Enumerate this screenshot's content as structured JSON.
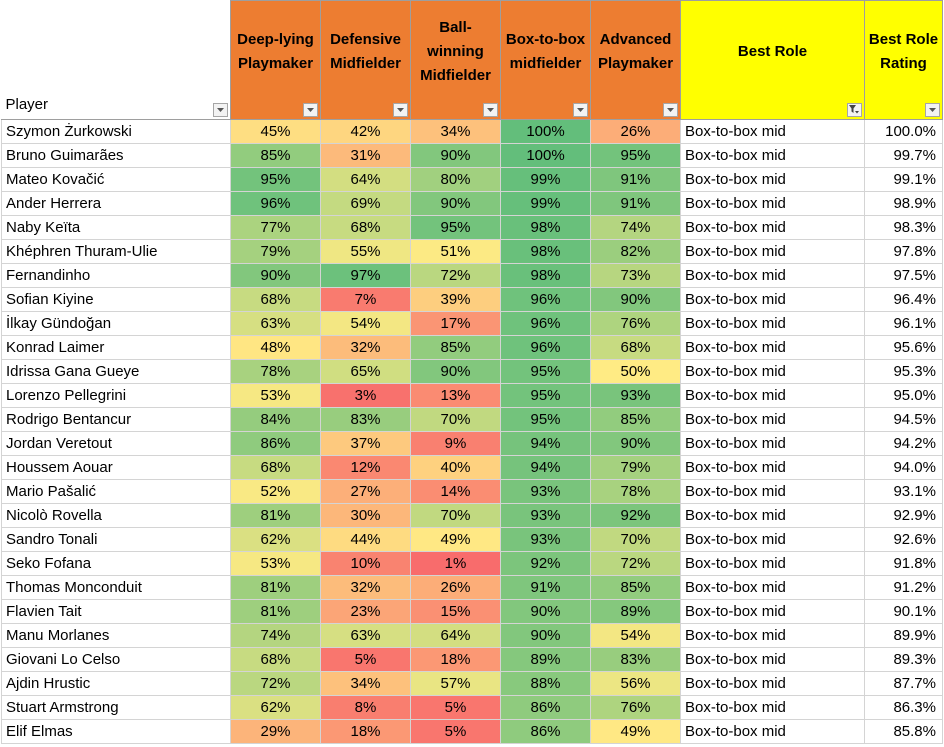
{
  "headers": {
    "player": "Player",
    "cols": [
      "Deep-lying Playmaker",
      "Defensive Midfielder",
      "Ball-winning Midfielder",
      "Box-to-box midfielder",
      "Advanced Playmaker",
      "Best Role",
      "Best Role Rating"
    ]
  },
  "filtered_column_index": 6,
  "rows": [
    {
      "player": "Szymon Żurkowski",
      "dlp": 45,
      "dm": 42,
      "bwm": 34,
      "b2b": 100,
      "ap": 26,
      "role": "Box-to-box mid",
      "rating": "100.0%"
    },
    {
      "player": "Bruno Guimarães",
      "dlp": 85,
      "dm": 31,
      "bwm": 90,
      "b2b": 100,
      "ap": 95,
      "role": "Box-to-box mid",
      "rating": "99.7%"
    },
    {
      "player": "Mateo Kovačić",
      "dlp": 95,
      "dm": 64,
      "bwm": 80,
      "b2b": 99,
      "ap": 91,
      "role": "Box-to-box mid",
      "rating": "99.1%"
    },
    {
      "player": "Ander Herrera",
      "dlp": 96,
      "dm": 69,
      "bwm": 90,
      "b2b": 99,
      "ap": 91,
      "role": "Box-to-box mid",
      "rating": "98.9%"
    },
    {
      "player": "Naby Keïta",
      "dlp": 77,
      "dm": 68,
      "bwm": 95,
      "b2b": 98,
      "ap": 74,
      "role": "Box-to-box mid",
      "rating": "98.3%"
    },
    {
      "player": "Khéphren Thuram-Ulie",
      "dlp": 79,
      "dm": 55,
      "bwm": 51,
      "b2b": 98,
      "ap": 82,
      "role": "Box-to-box mid",
      "rating": "97.8%"
    },
    {
      "player": "Fernandinho",
      "dlp": 90,
      "dm": 97,
      "bwm": 72,
      "b2b": 98,
      "ap": 73,
      "role": "Box-to-box mid",
      "rating": "97.5%"
    },
    {
      "player": "Sofian Kiyine",
      "dlp": 68,
      "dm": 7,
      "bwm": 39,
      "b2b": 96,
      "ap": 90,
      "role": "Box-to-box mid",
      "rating": "96.4%"
    },
    {
      "player": "İlkay Gündoğan",
      "dlp": 63,
      "dm": 54,
      "bwm": 17,
      "b2b": 96,
      "ap": 76,
      "role": "Box-to-box mid",
      "rating": "96.1%"
    },
    {
      "player": "Konrad Laimer",
      "dlp": 48,
      "dm": 32,
      "bwm": 85,
      "b2b": 96,
      "ap": 68,
      "role": "Box-to-box mid",
      "rating": "95.6%"
    },
    {
      "player": "Idrissa Gana Gueye",
      "dlp": 78,
      "dm": 65,
      "bwm": 90,
      "b2b": 95,
      "ap": 50,
      "role": "Box-to-box mid",
      "rating": "95.3%"
    },
    {
      "player": "Lorenzo Pellegrini",
      "dlp": 53,
      "dm": 3,
      "bwm": 13,
      "b2b": 95,
      "ap": 93,
      "role": "Box-to-box mid",
      "rating": "95.0%"
    },
    {
      "player": "Rodrigo Bentancur",
      "dlp": 84,
      "dm": 83,
      "bwm": 70,
      "b2b": 95,
      "ap": 85,
      "role": "Box-to-box mid",
      "rating": "94.5%"
    },
    {
      "player": "Jordan Veretout",
      "dlp": 86,
      "dm": 37,
      "bwm": 9,
      "b2b": 94,
      "ap": 90,
      "role": "Box-to-box mid",
      "rating": "94.2%"
    },
    {
      "player": "Houssem Aouar",
      "dlp": 68,
      "dm": 12,
      "bwm": 40,
      "b2b": 94,
      "ap": 79,
      "role": "Box-to-box mid",
      "rating": "94.0%"
    },
    {
      "player": "Mario Pašalić",
      "dlp": 52,
      "dm": 27,
      "bwm": 14,
      "b2b": 93,
      "ap": 78,
      "role": "Box-to-box mid",
      "rating": "93.1%"
    },
    {
      "player": "Nicolò Rovella",
      "dlp": 81,
      "dm": 30,
      "bwm": 70,
      "b2b": 93,
      "ap": 92,
      "role": "Box-to-box mid",
      "rating": "92.9%"
    },
    {
      "player": "Sandro Tonali",
      "dlp": 62,
      "dm": 44,
      "bwm": 49,
      "b2b": 93,
      "ap": 70,
      "role": "Box-to-box mid",
      "rating": "92.6%"
    },
    {
      "player": "Seko Fofana",
      "dlp": 53,
      "dm": 10,
      "bwm": 1,
      "b2b": 92,
      "ap": 72,
      "role": "Box-to-box mid",
      "rating": "91.8%"
    },
    {
      "player": "Thomas Monconduit",
      "dlp": 81,
      "dm": 32,
      "bwm": 26,
      "b2b": 91,
      "ap": 85,
      "role": "Box-to-box mid",
      "rating": "91.2%"
    },
    {
      "player": "Flavien Tait",
      "dlp": 81,
      "dm": 23,
      "bwm": 15,
      "b2b": 90,
      "ap": 89,
      "role": "Box-to-box mid",
      "rating": "90.1%"
    },
    {
      "player": "Manu Morlanes",
      "dlp": 74,
      "dm": 63,
      "bwm": 64,
      "b2b": 90,
      "ap": 54,
      "role": "Box-to-box mid",
      "rating": "89.9%"
    },
    {
      "player": "Giovani Lo Celso",
      "dlp": 68,
      "dm": 5,
      "bwm": 18,
      "b2b": 89,
      "ap": 83,
      "role": "Box-to-box mid",
      "rating": "89.3%"
    },
    {
      "player": "Ajdin Hrustic",
      "dlp": 72,
      "dm": 34,
      "bwm": 57,
      "b2b": 88,
      "ap": 56,
      "role": "Box-to-box mid",
      "rating": "87.7%"
    },
    {
      "player": "Stuart Armstrong",
      "dlp": 62,
      "dm": 8,
      "bwm": 5,
      "b2b": 86,
      "ap": 76,
      "role": "Box-to-box mid",
      "rating": "86.3%"
    },
    {
      "player": "Elif Elmas",
      "dlp": 29,
      "dm": 18,
      "bwm": 5,
      "b2b": 86,
      "ap": 49,
      "role": "Box-to-box mid",
      "rating": "85.8%"
    }
  ]
}
